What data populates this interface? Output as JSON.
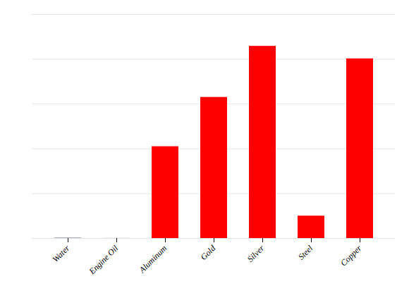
{
  "chart_data": {
    "type": "bar",
    "categories": [
      "Water",
      "Engine Oil",
      "Aluminum",
      "Gold",
      "Silver",
      "Steel",
      "Copper"
    ],
    "values": [
      0.6,
      0.15,
      205,
      315,
      429,
      50,
      401
    ],
    "colors": [
      "#1a2e5a",
      "#1a2e5a",
      "#ff0000",
      "#ff0000",
      "#ff0000",
      "#ff0000",
      "#ff0000"
    ],
    "ylim": [
      0,
      500
    ],
    "yticks": [
      0,
      100,
      200,
      300,
      400,
      500
    ],
    "grid": true,
    "tick_labels": "x"
  }
}
